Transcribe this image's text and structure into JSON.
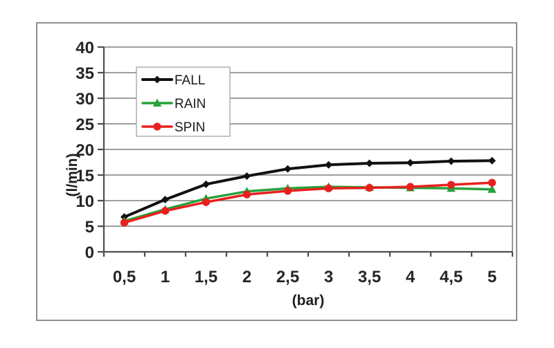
{
  "figure": {
    "background_color": "#ffffff",
    "frame_border_color": "#8e8e8e"
  },
  "colors": {
    "gridline": "#7f7f7f",
    "axis": "#4d4d4d",
    "tick_text": "#262626",
    "legend_border": "#b3b3b3",
    "legend_fill": "#ffffff"
  },
  "chart_data": {
    "type": "line",
    "title": "",
    "xlabel": "(bar)",
    "ylabel": "(l/min)",
    "x_tick_labels": [
      "0,5",
      "1",
      "1,5",
      "2",
      "2,5",
      "3",
      "3,5",
      "4",
      "4,5",
      "5"
    ],
    "x_values": [
      0.5,
      1,
      1.5,
      2,
      2.5,
      3,
      3.5,
      4,
      4.5,
      5
    ],
    "y_tick_labels": [
      "0",
      "5",
      "10",
      "15",
      "20",
      "25",
      "30",
      "35",
      "40"
    ],
    "ylim": [
      0,
      40
    ],
    "ytick_step": 5,
    "grid": "horizontal",
    "legend_position": "top-left-inside",
    "series": [
      {
        "name": "FALL",
        "color": "#111111",
        "marker": "diamond",
        "values": [
          6.8,
          10.2,
          13.2,
          14.8,
          16.2,
          17.0,
          17.3,
          17.4,
          17.7,
          17.8
        ]
      },
      {
        "name": "RAIN",
        "color": "#28a03c",
        "marker": "triangle",
        "values": [
          6.0,
          8.3,
          10.4,
          11.8,
          12.4,
          12.7,
          12.6,
          12.5,
          12.4,
          12.2
        ]
      },
      {
        "name": "SPIN",
        "color": "#e8201d",
        "marker": "circle",
        "values": [
          5.7,
          8.0,
          9.7,
          11.2,
          11.9,
          12.4,
          12.5,
          12.7,
          13.1,
          13.5
        ]
      }
    ]
  }
}
